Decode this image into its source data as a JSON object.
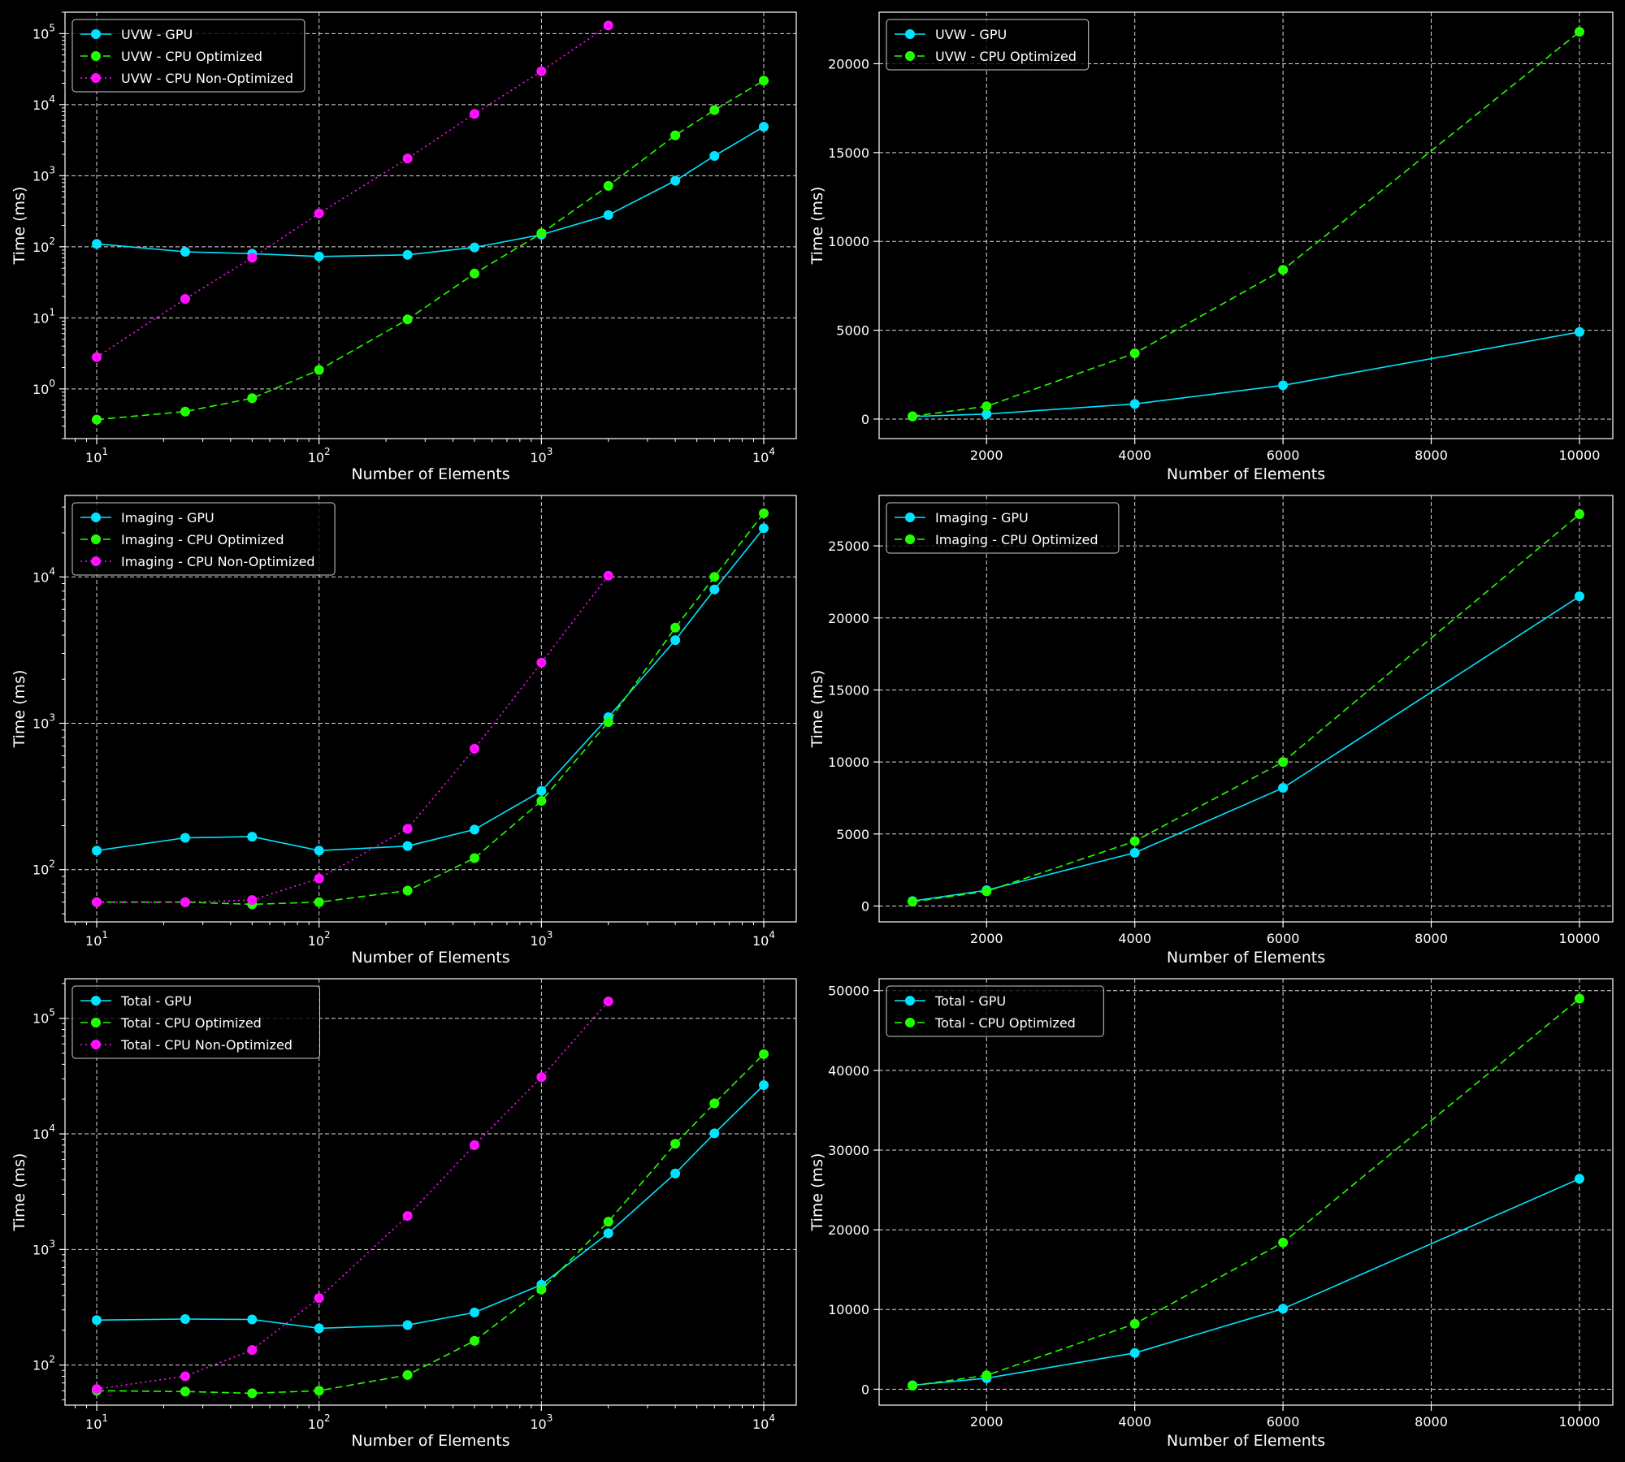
{
  "colors": {
    "background": "#000000",
    "gpu": "#00e5ff",
    "cpu_optimized": "#22ff00",
    "cpu_non_optimized": "#ff11ff",
    "grid": "#ffffff",
    "axis": "#ffffff"
  },
  "chart_data": [
    {
      "type": "line",
      "xlabel": "Number of Elements",
      "ylabel": "Time (ms)",
      "xscale": "log",
      "yscale": "log",
      "xlim": [
        7.2,
        14000
      ],
      "ylim": [
        0.2,
        200000
      ],
      "grid": true,
      "legend_position": "top-left",
      "x_ticks": [
        10,
        100,
        1000,
        10000
      ],
      "y_ticks": [
        1,
        10,
        100,
        1000,
        10000,
        100000
      ],
      "series": [
        {
          "name": "UVW - GPU",
          "style": "solid",
          "color_key": "gpu",
          "x": [
            10,
            25,
            50,
            100,
            250,
            500,
            1000,
            2000,
            4000,
            6000,
            10000
          ],
          "y": [
            110,
            85,
            80,
            73,
            77,
            98,
            148,
            280,
            850,
            1900,
            4900
          ]
        },
        {
          "name": "UVW - CPU Optimized",
          "style": "dashed",
          "color_key": "cpu_optimized",
          "x": [
            10,
            25,
            50,
            100,
            250,
            500,
            1000,
            2000,
            4000,
            6000,
            10000
          ],
          "y": [
            0.37,
            0.48,
            0.74,
            1.85,
            9.5,
            42,
            155,
            720,
            3700,
            8400,
            21800
          ]
        },
        {
          "name": "UVW - CPU Non-Optimized",
          "style": "dotted",
          "color_key": "cpu_non_optimized",
          "x": [
            10,
            25,
            50,
            100,
            250,
            500,
            1000,
            2000
          ],
          "y": [
            2.8,
            18.5,
            70,
            295,
            1750,
            7400,
            29500,
            130000
          ]
        }
      ]
    },
    {
      "type": "line",
      "xlabel": "Number of Elements",
      "ylabel": "Time (ms)",
      "xscale": "linear",
      "yscale": "linear",
      "xlim": [
        550,
        10450
      ],
      "ylim": [
        -1100,
        22900
      ],
      "grid": true,
      "legend_position": "top-left",
      "x_ticks": [
        2000,
        4000,
        6000,
        8000,
        10000
      ],
      "y_ticks": [
        0,
        5000,
        10000,
        15000,
        20000
      ],
      "series": [
        {
          "name": "UVW - GPU",
          "style": "solid",
          "color_key": "gpu",
          "x": [
            1000,
            2000,
            4000,
            6000,
            10000
          ],
          "y": [
            148,
            280,
            850,
            1900,
            4900
          ]
        },
        {
          "name": "UVW - CPU Optimized",
          "style": "dashed",
          "color_key": "cpu_optimized",
          "x": [
            1000,
            2000,
            4000,
            6000,
            10000
          ],
          "y": [
            155,
            720,
            3700,
            8400,
            21800
          ]
        }
      ]
    },
    {
      "type": "line",
      "xlabel": "Number of Elements",
      "ylabel": "Time (ms)",
      "xscale": "log",
      "yscale": "log",
      "xlim": [
        7.2,
        14000
      ],
      "ylim": [
        44,
        36000
      ],
      "grid": true,
      "legend_position": "top-left",
      "x_ticks": [
        10,
        100,
        1000,
        10000
      ],
      "y_ticks": [
        100,
        1000,
        10000
      ],
      "series": [
        {
          "name": "Imaging - GPU",
          "style": "solid",
          "color_key": "gpu",
          "x": [
            10,
            25,
            50,
            100,
            250,
            500,
            1000,
            2000,
            4000,
            6000,
            10000
          ],
          "y": [
            135,
            165,
            168,
            135,
            145,
            188,
            345,
            1100,
            3700,
            8200,
            21500
          ]
        },
        {
          "name": "Imaging - CPU Optimized",
          "style": "dashed",
          "color_key": "cpu_optimized",
          "x": [
            10,
            25,
            50,
            100,
            250,
            500,
            1000,
            2000,
            4000,
            6000,
            10000
          ],
          "y": [
            60,
            60,
            58,
            60,
            72,
            120,
            295,
            1020,
            4500,
            10000,
            27200
          ]
        },
        {
          "name": "Imaging - CPU Non-Optimized",
          "style": "dotted",
          "color_key": "cpu_non_optimized",
          "x": [
            10,
            25,
            50,
            100,
            250,
            500,
            1000,
            2000
          ],
          "y": [
            60,
            60,
            62,
            87,
            190,
            670,
            2600,
            10200
          ]
        }
      ]
    },
    {
      "type": "line",
      "xlabel": "Number of Elements",
      "ylabel": "Time (ms)",
      "xscale": "linear",
      "yscale": "linear",
      "xlim": [
        550,
        10450
      ],
      "ylim": [
        -1100,
        28500
      ],
      "grid": true,
      "legend_position": "top-left",
      "x_ticks": [
        2000,
        4000,
        6000,
        8000,
        10000
      ],
      "y_ticks": [
        0,
        5000,
        10000,
        15000,
        20000,
        25000
      ],
      "series": [
        {
          "name": "Imaging - GPU",
          "style": "solid",
          "color_key": "gpu",
          "x": [
            1000,
            2000,
            4000,
            6000,
            10000
          ],
          "y": [
            345,
            1100,
            3700,
            8200,
            21500
          ]
        },
        {
          "name": "Imaging - CPU Optimized",
          "style": "dashed",
          "color_key": "cpu_optimized",
          "x": [
            1000,
            2000,
            4000,
            6000,
            10000
          ],
          "y": [
            295,
            1020,
            4500,
            10000,
            27200
          ]
        }
      ]
    },
    {
      "type": "line",
      "xlabel": "Number of Elements",
      "ylabel": "Time (ms)",
      "xscale": "log",
      "yscale": "log",
      "xlim": [
        7.2,
        14000
      ],
      "ylim": [
        45,
        220000
      ],
      "grid": true,
      "legend_position": "top-left",
      "x_ticks": [
        10,
        100,
        1000,
        10000
      ],
      "y_ticks": [
        100,
        1000,
        10000,
        100000
      ],
      "series": [
        {
          "name": "Total - GPU",
          "style": "solid",
          "color_key": "gpu",
          "x": [
            10,
            25,
            50,
            100,
            250,
            500,
            1000,
            2000,
            4000,
            6000,
            10000
          ],
          "y": [
            245,
            250,
            248,
            208,
            222,
            285,
            495,
            1380,
            4550,
            10100,
            26400
          ]
        },
        {
          "name": "Total - CPU Optimized",
          "style": "dashed",
          "color_key": "cpu_optimized",
          "x": [
            10,
            25,
            50,
            100,
            250,
            500,
            1000,
            2000,
            4000,
            6000,
            10000
          ],
          "y": [
            60,
            59,
            57,
            60,
            82,
            162,
            450,
            1740,
            8200,
            18400,
            49000
          ]
        },
        {
          "name": "Total - CPU Non-Optimized",
          "style": "dotted",
          "color_key": "cpu_non_optimized",
          "x": [
            10,
            25,
            50,
            100,
            250,
            500,
            1000,
            2000
          ],
          "y": [
            62,
            80,
            135,
            380,
            1950,
            8000,
            31000,
            140000
          ]
        }
      ]
    },
    {
      "type": "line",
      "xlabel": "Number of Elements",
      "ylabel": "Time (ms)",
      "xscale": "linear",
      "yscale": "linear",
      "xlim": [
        550,
        10450
      ],
      "ylim": [
        -2000,
        51500
      ],
      "grid": true,
      "legend_position": "top-left",
      "x_ticks": [
        2000,
        4000,
        6000,
        8000,
        10000
      ],
      "y_ticks": [
        0,
        10000,
        20000,
        30000,
        40000,
        50000
      ],
      "series": [
        {
          "name": "Total - GPU",
          "style": "solid",
          "color_key": "gpu",
          "x": [
            1000,
            2000,
            4000,
            6000,
            10000
          ],
          "y": [
            495,
            1380,
            4550,
            10100,
            26400
          ]
        },
        {
          "name": "Total - CPU Optimized",
          "style": "dashed",
          "color_key": "cpu_optimized",
          "x": [
            1000,
            2000,
            4000,
            6000,
            10000
          ],
          "y": [
            450,
            1740,
            8200,
            18400,
            49000
          ]
        }
      ]
    }
  ]
}
